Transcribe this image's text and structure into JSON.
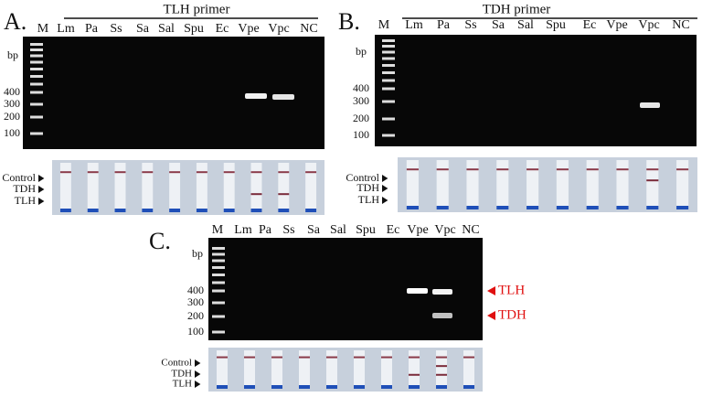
{
  "panels": [
    {
      "label": "A.",
      "title": "TLH primer",
      "lanes": [
        "M",
        "Lm",
        "Pa",
        "Ss",
        "Sa",
        "Sal",
        "Spu",
        "Ec",
        "Vpe",
        "Vpc",
        "NC"
      ],
      "bp_label": "bp",
      "sizes": [
        400,
        300,
        200,
        100
      ],
      "strip_labels": [
        "Control",
        "TDH",
        "TLH"
      ]
    },
    {
      "label": "B.",
      "title": "TDH primer",
      "lanes": [
        "M",
        "Lm",
        "Pa",
        "Ss",
        "Sa",
        "Sal",
        "Spu",
        "Ec",
        "Vpe",
        "Vpc",
        "NC"
      ],
      "bp_label": "bp",
      "sizes": [
        400,
        300,
        200,
        100
      ],
      "strip_labels": [
        "Control",
        "TDH",
        "TLH"
      ]
    },
    {
      "label": "C.",
      "lanes": [
        "M",
        "Lm",
        "Pa",
        "Ss",
        "Sa",
        "Sal",
        "Spu",
        "Ec",
        "Vpe",
        "Vpc",
        "NC"
      ],
      "bp_label": "bp",
      "sizes": [
        400,
        300,
        200,
        100
      ],
      "strip_labels": [
        "Control",
        "TDH",
        "TLH"
      ],
      "annotations": [
        "TLH",
        "TDH"
      ]
    }
  ]
}
